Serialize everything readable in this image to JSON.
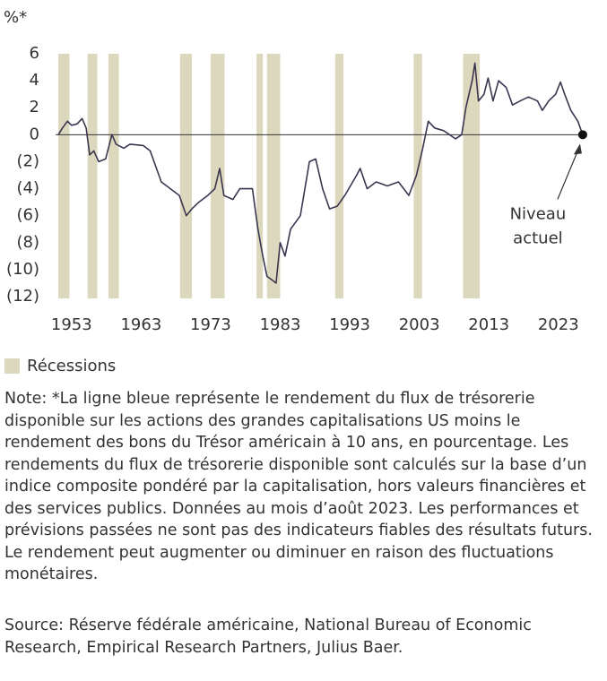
{
  "chart_data": {
    "type": "line",
    "y_label": "%*",
    "xlim": [
      1949.8,
      2027.8
    ],
    "ylim": [
      -12,
      6
    ],
    "xticks": [
      1953,
      1963,
      1973,
      1983,
      1993,
      2003,
      2013,
      2023
    ],
    "yticks": [
      6,
      4,
      2,
      0,
      {
        "value": -2,
        "label": "(2)"
      },
      {
        "value": -4,
        "label": "(4)"
      },
      {
        "value": -6,
        "label": "(6)"
      },
      {
        "value": -8,
        "label": "(8)"
      },
      {
        "value": -10,
        "label": "(10)"
      },
      {
        "value": -12,
        "label": "(12)"
      }
    ],
    "series": [
      {
        "color": "#3b3650",
        "x": [
          1951.1,
          1951.7,
          1952.4,
          1953,
          1953.8,
          1954.5,
          1955.1,
          1955.6,
          1956.2,
          1956.9,
          1957.9,
          1958.8,
          1959.4,
          1960.5,
          1961.4,
          1963.3,
          1964.3,
          1965.9,
          1967.2,
          1968.5,
          1969.5,
          1970.3,
          1971.3,
          1972.6,
          1973.6,
          1974.3,
          1974.9,
          1976.2,
          1977.2,
          1979,
          1979.8,
          1980.5,
          1981.1,
          1981.9,
          1982.4,
          1983,
          1983.7,
          1984.5,
          1985.9,
          1987.2,
          1988.1,
          1989.1,
          1990.1,
          1991.2,
          1992.3,
          1994,
          1994.5,
          1995.5,
          1996.8,
          1998.4,
          2000,
          2001.5,
          2002.6,
          2003.5,
          2004.3,
          2005.2,
          2006.5,
          2008.2,
          2009.1,
          2009.7,
          2010.6,
          2011,
          2011.5,
          2012.3,
          2012.9,
          2013.6,
          2014.4,
          2015.5,
          2016.4,
          2017.5,
          2018.7,
          2020,
          2020.7,
          2021.6,
          2022.6,
          2023.3,
          2023.9,
          2024.8,
          2025.8,
          2026.5
        ],
        "values": [
          0,
          0.5,
          1.0,
          0.7,
          0.8,
          1.2,
          0.5,
          -1.5,
          -1.2,
          -2,
          -1.8,
          0,
          -0.7,
          -1,
          -0.7,
          -0.8,
          -1.2,
          -3.5,
          -4,
          -4.5,
          -6,
          -5.5,
          -5,
          -4.5,
          -4,
          -2.5,
          -4.5,
          -4.8,
          -4,
          -4,
          -7,
          -9,
          -10.5,
          -10.8,
          -11,
          -8,
          -9,
          -7,
          -6,
          -2,
          -1.8,
          -4,
          -5.5,
          -5.3,
          -4.5,
          -3,
          -2.5,
          -4,
          -3.5,
          -3.8,
          -3.5,
          -4.5,
          -3,
          -1,
          1,
          0.5,
          0.3,
          -0.3,
          0,
          2,
          4,
          5.3,
          2.5,
          3,
          4.2,
          2.5,
          4,
          3.5,
          2.2,
          2.5,
          2.8,
          2.5,
          1.8,
          2.5,
          3,
          3.9,
          3,
          1.8,
          1,
          0
        ]
      }
    ],
    "recessions": [
      [
        1951.1,
        1952.7
      ],
      [
        1955.3,
        1956.7
      ],
      [
        1958.3,
        1959.8
      ],
      [
        1968.6,
        1970.3
      ],
      [
        1973.0,
        1975.0
      ],
      [
        1979.6,
        1980.5
      ],
      [
        1981.1,
        1983.0
      ],
      [
        1990.9,
        1992.1
      ],
      [
        2002.2,
        2003.4
      ],
      [
        2009.3,
        2011.7
      ]
    ],
    "recession_color": "#dcd8bd",
    "legend_label": "Récessions",
    "annotation": [
      "Niveau",
      "actuel"
    ]
  },
  "note": "Note: *La ligne bleue représente le rendement du flux de trésorerie disponible sur les actions des grandes capitalisations US moins le rendement des bons du Trésor américain à 10 ans, en pourcentage. Les rendements du flux de trésorerie disponible sont calculés sur la base d’un indice composite pondéré par la capitalisation, hors valeurs financières et des services publics. Données au mois d’août 2023. Les performances et prévisions passées ne sont pas des indicateurs fiables des résultats futurs. Le rendement peut augmenter ou diminuer en raison des fluctuations monétaires.",
  "source": "Source: Réserve fédérale américaine, National Bureau of Economic Research, Empirical Research Partners, Julius Baer."
}
